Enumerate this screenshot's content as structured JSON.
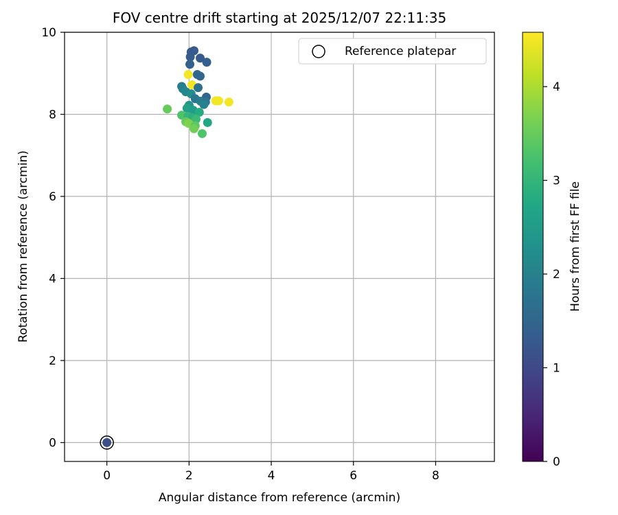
{
  "chart_data": {
    "type": "scatter",
    "title": "FOV centre drift starting at 2025/12/07 22:11:35",
    "xlabel": "Angular distance from reference (arcmin)",
    "ylabel": "Rotation from reference (arcmin)",
    "xlim": [
      -1.03,
      9.43
    ],
    "ylim": [
      -0.46,
      10
    ],
    "xticks": [
      0,
      2,
      4,
      6,
      8
    ],
    "yticks": [
      0,
      2,
      4,
      6,
      8,
      10
    ],
    "grid": true,
    "legend": {
      "position": "top-right",
      "label": "Reference platepar"
    },
    "colorbar": {
      "label": "Hours from first FF file",
      "range": [
        0,
        4.58
      ],
      "ticks": [
        0,
        1,
        2,
        3,
        4
      ],
      "colormap": "viridis"
    },
    "reference_point": {
      "x": 0,
      "y": 0,
      "t": 1.1
    },
    "points": [
      {
        "x": 2.05,
        "y": 9.52,
        "t": 1.3
      },
      {
        "x": 2.12,
        "y": 9.55,
        "t": 1.3
      },
      {
        "x": 2.03,
        "y": 9.4,
        "t": 1.3
      },
      {
        "x": 2.27,
        "y": 9.37,
        "t": 1.3
      },
      {
        "x": 2.43,
        "y": 9.27,
        "t": 1.4
      },
      {
        "x": 2.02,
        "y": 9.22,
        "t": 1.4
      },
      {
        "x": 2.2,
        "y": 8.97,
        "t": 1.5
      },
      {
        "x": 2.27,
        "y": 8.93,
        "t": 1.5
      },
      {
        "x": 1.98,
        "y": 8.97,
        "t": 4.5
      },
      {
        "x": 2.07,
        "y": 8.72,
        "t": 4.5
      },
      {
        "x": 2.22,
        "y": 8.65,
        "t": 1.7
      },
      {
        "x": 1.82,
        "y": 8.68,
        "t": 1.9
      },
      {
        "x": 1.85,
        "y": 8.62,
        "t": 2.0
      },
      {
        "x": 1.92,
        "y": 8.55,
        "t": 2.1
      },
      {
        "x": 2.05,
        "y": 8.5,
        "t": 2.2
      },
      {
        "x": 2.42,
        "y": 8.42,
        "t": 1.5
      },
      {
        "x": 2.15,
        "y": 8.38,
        "t": 1.8
      },
      {
        "x": 2.28,
        "y": 8.32,
        "t": 1.9
      },
      {
        "x": 2.4,
        "y": 8.3,
        "t": 1.8
      },
      {
        "x": 2.36,
        "y": 8.24,
        "t": 2.0
      },
      {
        "x": 2.65,
        "y": 8.33,
        "t": 4.5
      },
      {
        "x": 2.72,
        "y": 8.33,
        "t": 4.5
      },
      {
        "x": 2.97,
        "y": 8.3,
        "t": 4.5
      },
      {
        "x": 2.0,
        "y": 8.22,
        "t": 2.3
      },
      {
        "x": 1.95,
        "y": 8.15,
        "t": 2.6
      },
      {
        "x": 1.47,
        "y": 8.13,
        "t": 3.5
      },
      {
        "x": 2.1,
        "y": 8.1,
        "t": 2.5
      },
      {
        "x": 2.25,
        "y": 8.05,
        "t": 2.8
      },
      {
        "x": 1.82,
        "y": 7.98,
        "t": 3.3
      },
      {
        "x": 1.97,
        "y": 7.95,
        "t": 3.0
      },
      {
        "x": 2.08,
        "y": 7.92,
        "t": 2.9
      },
      {
        "x": 2.17,
        "y": 7.88,
        "t": 3.1
      },
      {
        "x": 2.45,
        "y": 7.8,
        "t": 2.7
      },
      {
        "x": 1.92,
        "y": 7.82,
        "t": 3.5
      },
      {
        "x": 1.99,
        "y": 7.78,
        "t": 3.7
      },
      {
        "x": 2.15,
        "y": 7.72,
        "t": 3.4
      },
      {
        "x": 2.12,
        "y": 7.65,
        "t": 3.6
      },
      {
        "x": 2.32,
        "y": 7.53,
        "t": 3.3
      }
    ]
  }
}
